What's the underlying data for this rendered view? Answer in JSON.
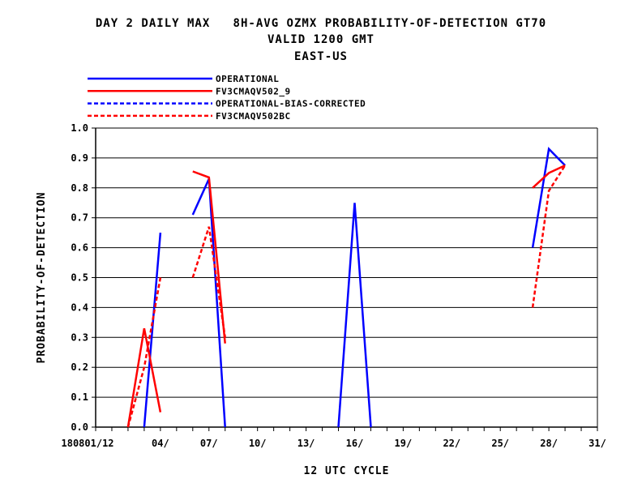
{
  "header": {
    "title_line1": "DAY 2 DAILY MAX   8H-AVG OZMX PROBABILITY-OF-DETECTION GT70",
    "title_line2": "VALID 1200 GMT",
    "title_line3": "EAST-US"
  },
  "chart_data": {
    "type": "line",
    "xlabel": "12 UTC CYCLE",
    "ylabel": "PROBABILITY-OF-DETECTION",
    "xlim": [
      0,
      31
    ],
    "ylim": [
      0,
      1.0
    ],
    "x_tick_values": [
      -0.5,
      4,
      7,
      10,
      13,
      16,
      19,
      22,
      25,
      28,
      31
    ],
    "x_tick_labels": [
      "180801/12",
      "04/",
      "07/",
      "10/",
      "13/",
      "16/",
      "19/",
      "22/",
      "25/",
      "28/",
      "31/"
    ],
    "y_ticks": [
      0.0,
      0.1,
      0.2,
      0.3,
      0.4,
      0.5,
      0.6,
      0.7,
      0.8,
      0.9,
      1.0
    ],
    "y_tick_labels": [
      "0.0",
      "0.1",
      "0.2",
      "0.3",
      "0.4",
      "0.5",
      "0.6",
      "0.7",
      "0.8",
      "0.9",
      "1.0"
    ],
    "grid": "horizontal",
    "legend_position": "top-left",
    "series": [
      {
        "name": "OPERATIONAL",
        "color": "#0000ff",
        "dash": "solid",
        "segments": [
          [
            [
              3,
              0.0
            ],
            [
              4,
              0.65
            ]
          ],
          [
            [
              6,
              0.71
            ],
            [
              7,
              0.83
            ],
            [
              8,
              0.0
            ]
          ],
          [
            [
              15,
              0.0
            ],
            [
              16,
              0.75
            ],
            [
              17,
              0.0
            ]
          ],
          [
            [
              27,
              0.6
            ],
            [
              28,
              0.93
            ],
            [
              29,
              0.875
            ]
          ]
        ]
      },
      {
        "name": "FV3CMAQV502_9",
        "color": "#ff0000",
        "dash": "solid",
        "segments": [
          [
            [
              2,
              0.0
            ],
            [
              3,
              0.33
            ],
            [
              4,
              0.05
            ]
          ],
          [
            [
              6,
              0.855
            ],
            [
              7,
              0.835
            ],
            [
              8,
              0.28
            ]
          ],
          [
            [
              27,
              0.8
            ],
            [
              28,
              0.85
            ],
            [
              29,
              0.875
            ]
          ]
        ]
      },
      {
        "name": "OPERATIONAL-BIAS-CORRECTED",
        "color": "#0000ff",
        "dash": "dashed",
        "segments": []
      },
      {
        "name": "FV3CMAQV502BC",
        "color": "#ff0000",
        "dash": "dashed",
        "segments": [
          [
            [
              2,
              0.0
            ],
            [
              3,
              0.2
            ],
            [
              4,
              0.5
            ]
          ],
          [
            [
              6,
              0.5
            ],
            [
              7,
              0.67
            ],
            [
              8,
              0.3
            ]
          ],
          [
            [
              27,
              0.4
            ],
            [
              28,
              0.79
            ],
            [
              29,
              0.875
            ]
          ]
        ]
      }
    ]
  }
}
